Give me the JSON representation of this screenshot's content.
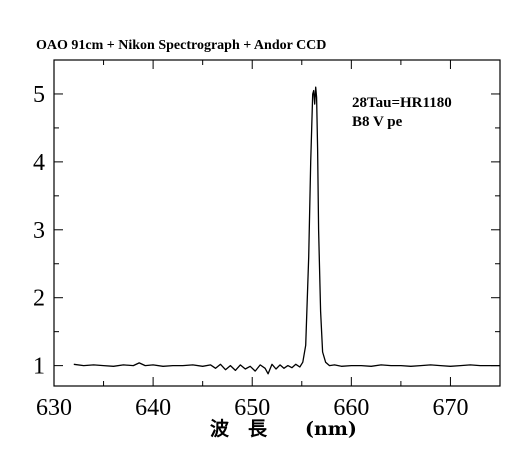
{
  "chart_data": {
    "type": "line",
    "title": "OAO 91cm + Nikon Spectrograph + Andor CCD",
    "xlabel": "波　長　　(nm)",
    "ylabel": "",
    "xlim": [
      630,
      675
    ],
    "ylim": [
      0.7,
      5.5
    ],
    "xticks": [
      "630",
      "640",
      "650",
      "660",
      "670"
    ],
    "yticks": [
      "1",
      "2",
      "3",
      "4",
      "5"
    ],
    "grid": false,
    "annotations": [
      "28Tau=HR1180",
      "B8 V pe"
    ],
    "series": [
      {
        "x": [
          632.0,
          633.0,
          634.0,
          635.0,
          636.0,
          637.0,
          638.0,
          638.6,
          639.2,
          640.0,
          641.0,
          642.0,
          643.0,
          644.0,
          645.0,
          645.8,
          646.3,
          646.8,
          647.3,
          647.8,
          648.3,
          648.8,
          649.3,
          649.8,
          650.3,
          650.8,
          651.3,
          651.6,
          652.0,
          652.4,
          652.8,
          653.2,
          653.6,
          654.0,
          654.4,
          654.8,
          655.1,
          655.4,
          655.7,
          655.9,
          656.1,
          656.2,
          656.3,
          656.4,
          656.5,
          656.6,
          656.7,
          656.9,
          657.1,
          657.4,
          657.8,
          658.3,
          659.0,
          660.0,
          661.0,
          662.0,
          663.0,
          664.0,
          665.0,
          666.0,
          667.0,
          668.0,
          669.0,
          670.0,
          671.0,
          672.0,
          673.0,
          674.0,
          675.0
        ],
        "y": [
          1.02,
          1.0,
          1.01,
          1.0,
          0.99,
          1.01,
          1.0,
          1.04,
          1.0,
          1.01,
          0.99,
          1.0,
          1.0,
          1.01,
          0.99,
          1.01,
          0.96,
          1.02,
          0.94,
          1.0,
          0.93,
          1.01,
          0.95,
          0.99,
          0.92,
          1.01,
          0.96,
          0.88,
          1.02,
          0.95,
          1.01,
          0.96,
          1.0,
          0.97,
          1.02,
          0.98,
          1.05,
          1.3,
          2.6,
          4.0,
          5.0,
          5.05,
          4.85,
          5.1,
          4.95,
          4.2,
          3.0,
          1.8,
          1.2,
          1.05,
          1.0,
          1.01,
          0.99,
          1.0,
          1.0,
          0.99,
          1.01,
          1.0,
          1.0,
          0.99,
          1.0,
          1.01,
          1.0,
          0.99,
          1.0,
          1.01,
          1.0,
          1.0,
          1.0
        ]
      }
    ]
  }
}
